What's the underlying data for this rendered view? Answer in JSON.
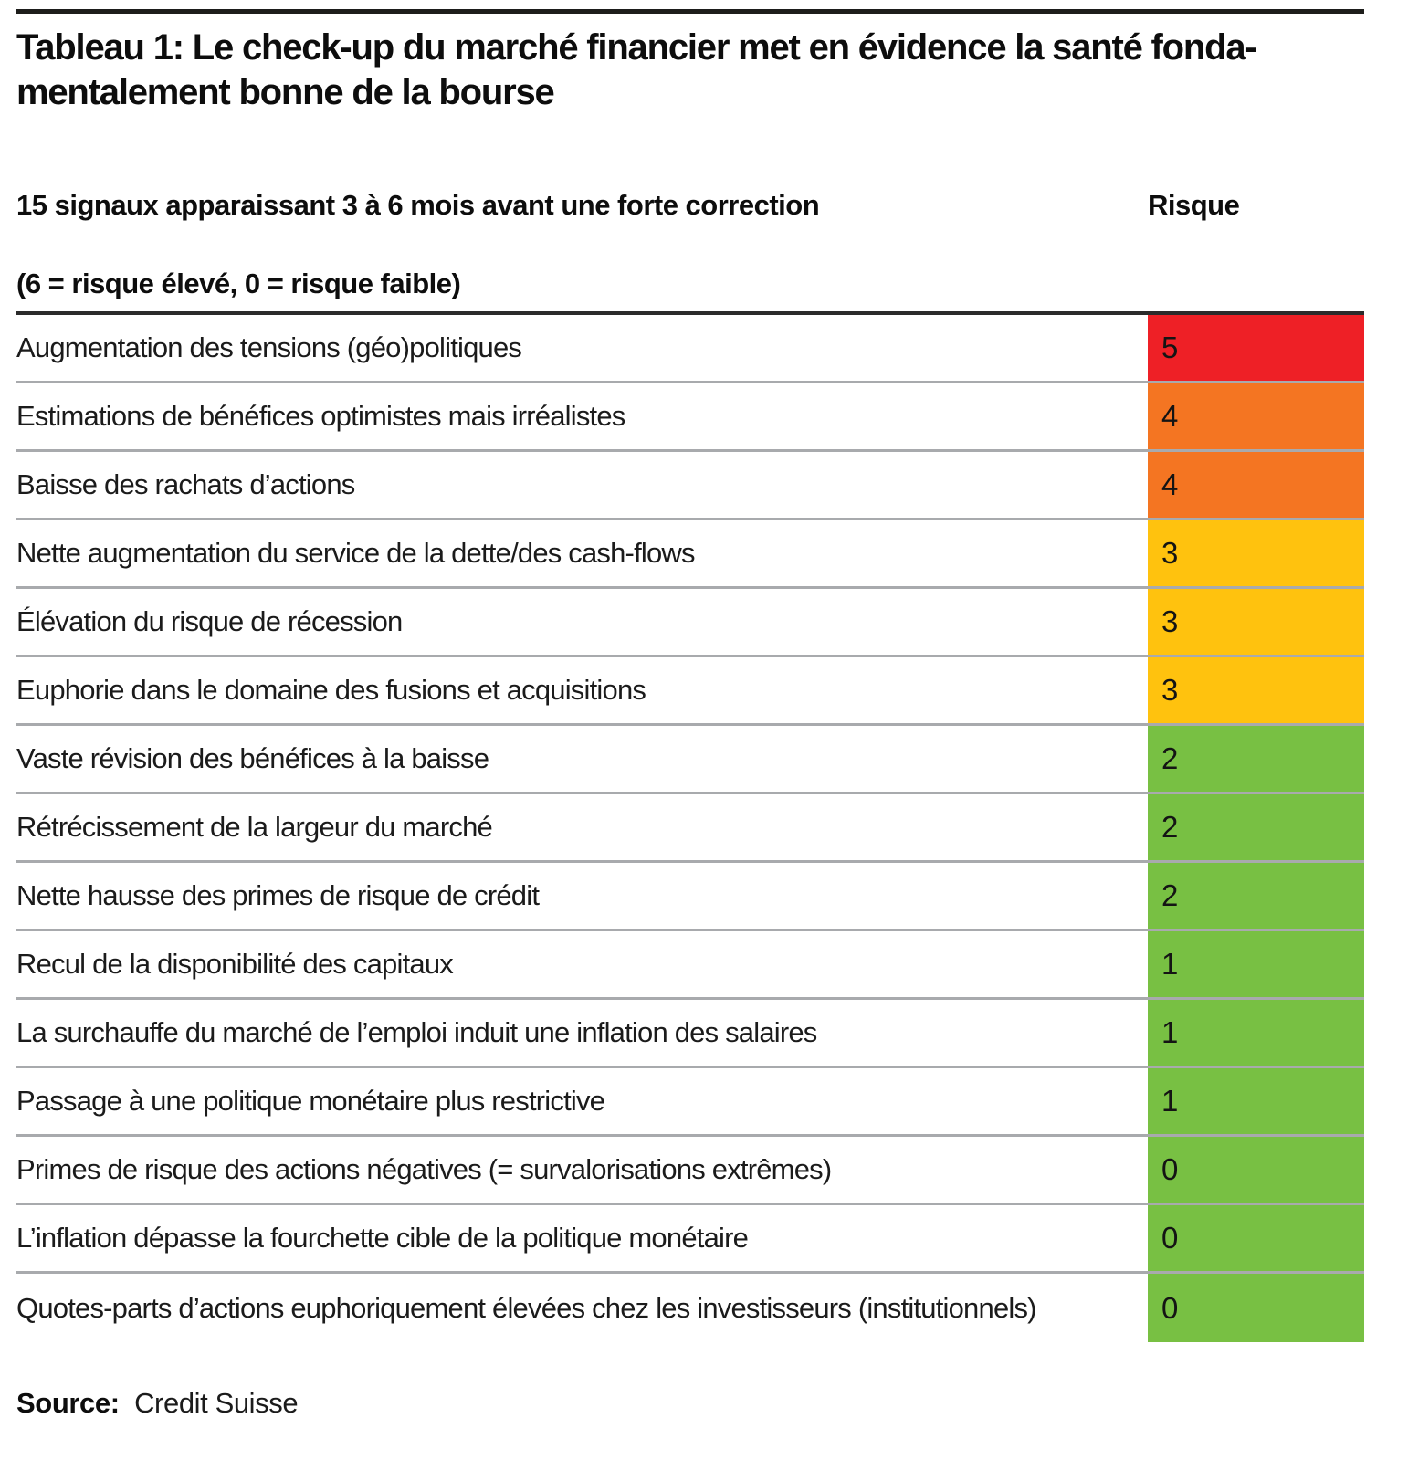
{
  "chart_data": {
    "type": "table",
    "title": "Tableau 1: Le check-up du marché financier met en évidence la santé fondamentalement bonne de la bourse",
    "title_lines": [
      "Tableau 1: Le check-up du marché financier met en évidence la santé fonda-",
      "mentalement bonne de la bourse"
    ],
    "column_headers": {
      "signals": "15 signaux apparaissant 3 à 6 mois avant une forte correction",
      "risk": "Risque"
    },
    "scale_note": "(6 = risque élevé, 0 = risque faible)",
    "risk_scale": {
      "min": 0,
      "max": 6
    },
    "rows": [
      {
        "label": "Augmentation des tensions (géo)politiques",
        "value": 5,
        "color": "#ee2026"
      },
      {
        "label": "Estimations de bénéfices optimistes mais irréalistes",
        "value": 4,
        "color": "#f47522"
      },
      {
        "label": "Baisse des rachats d’actions",
        "value": 4,
        "color": "#f47522"
      },
      {
        "label": "Nette augmentation du service de la dette/des cash-flows",
        "value": 3,
        "color": "#ffc20e"
      },
      {
        "label": "Élévation du risque de récession",
        "value": 3,
        "color": "#ffc20e"
      },
      {
        "label": "Euphorie dans le domaine des fusions et acquisitions",
        "value": 3,
        "color": "#ffc20e"
      },
      {
        "label": "Vaste révision des bénéfices à la baisse",
        "value": 2,
        "color": "#78c043"
      },
      {
        "label": "Rétrécissement de la largeur du marché",
        "value": 2,
        "color": "#78c043"
      },
      {
        "label": "Nette hausse des primes de risque de crédit",
        "value": 2,
        "color": "#78c043"
      },
      {
        "label": "Recul de la disponibilité des capitaux",
        "value": 1,
        "color": "#78c043"
      },
      {
        "label": "La surchauffe du marché de l’emploi induit une inflation des salaires",
        "value": 1,
        "color": "#78c043"
      },
      {
        "label": "Passage à une politique monétaire plus restrictive",
        "value": 1,
        "color": "#78c043"
      },
      {
        "label": "Primes de risque des actions négatives (= survalorisations extrêmes)",
        "value": 0,
        "color": "#78c043"
      },
      {
        "label": "L’inflation dépasse la fourchette cible de la politique monétaire",
        "value": 0,
        "color": "#78c043"
      },
      {
        "label": "Quotes-parts d’actions euphoriquement élevées chez les investisseurs (institutionnels)",
        "value": 0,
        "color": "#78c043"
      }
    ],
    "risk_colors": {
      "5": "#ee2026",
      "4": "#f47522",
      "3": "#ffc20e",
      "2": "#78c043",
      "1": "#78c043",
      "0": "#78c043"
    },
    "source_label": "Source:",
    "source_text": "Credit Suisse"
  },
  "colors": {
    "page_top_rule": "#1d1d1b",
    "table_top_rule": "#2b2b2b",
    "row_separator": "#a8aaad",
    "text": "#1a1a1a"
  }
}
